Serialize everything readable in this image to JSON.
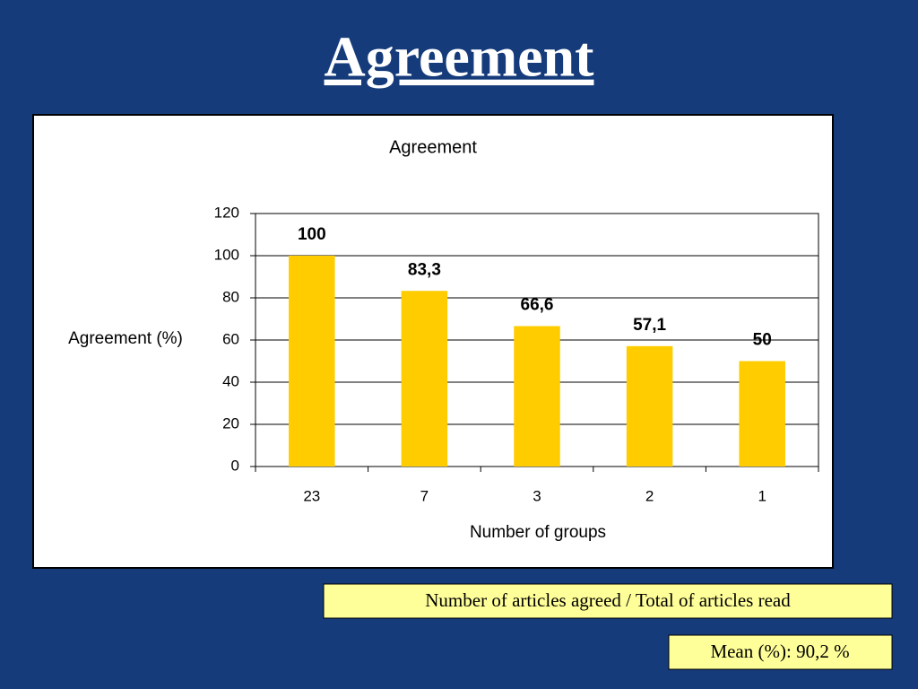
{
  "slide_title": "Agreement",
  "chart_data": {
    "type": "bar",
    "title": "Agreement",
    "x_label": "Number of groups",
    "y_label": "Agreement (%)",
    "categories": [
      "23",
      "7",
      "3",
      "2",
      "1"
    ],
    "values": [
      100,
      83.3,
      66.6,
      57.1,
      50
    ],
    "value_labels": [
      "100",
      "83,3",
      "66,6",
      "57,1",
      "50"
    ],
    "color": "#ffcc00",
    "ylim": [
      0,
      120
    ],
    "yticks": [
      0,
      20,
      40,
      60,
      80,
      100,
      120
    ],
    "grid": true
  },
  "notes": [
    "Number of articles agreed / Total of articles read",
    "Mean (%): 90,2 %"
  ]
}
